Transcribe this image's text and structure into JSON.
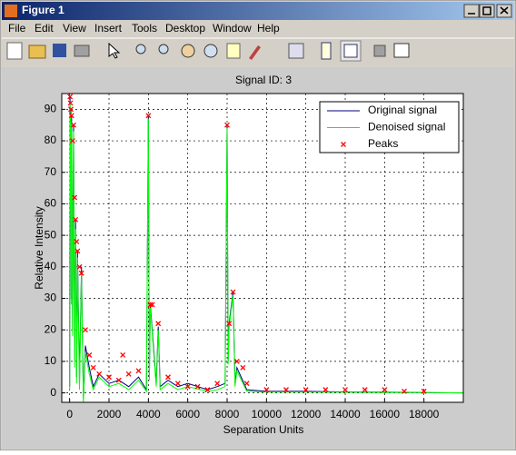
{
  "window": {
    "title": "Figure 1",
    "menu": [
      "File",
      "Edit",
      "View",
      "Insert",
      "Tools",
      "Desktop",
      "Window",
      "Help"
    ]
  },
  "chart_data": {
    "type": "line",
    "title": "Signal ID: 3",
    "x_label": "Separation Units",
    "y_label": "Relative Intensity",
    "x": [
      0,
      20,
      40,
      60,
      80,
      100,
      150,
      200,
      250,
      300,
      350,
      400,
      500,
      600,
      700,
      800,
      1000,
      1200,
      1500,
      2000,
      2500,
      3000,
      3500,
      3900,
      4000,
      4050,
      4100,
      4400,
      4500,
      4600,
      5000,
      5500,
      6000,
      7000,
      7500,
      7900,
      8000,
      8050,
      8100,
      8300,
      8400,
      8500,
      9000,
      10000,
      12000,
      14000,
      16000,
      18000,
      20000
    ],
    "series": [
      {
        "name": "Original signal",
        "color": "#000080",
        "values": [
          2,
          94,
          60,
          90,
          30,
          88,
          20,
          85,
          10,
          55,
          5,
          45,
          3,
          40,
          -2,
          15,
          8,
          2,
          6,
          3,
          4,
          2,
          5,
          1,
          88,
          5,
          28,
          3,
          21,
          2,
          4,
          2,
          3,
          1,
          2,
          3,
          85,
          10,
          22,
          32,
          3,
          8,
          1,
          0.5,
          0.5,
          0.3,
          0.2,
          0.1,
          0
        ]
      },
      {
        "name": "Denoised signal",
        "color": "#00ff00",
        "values": [
          1,
          92,
          58,
          88,
          28,
          86,
          18,
          83,
          8,
          52,
          3,
          43,
          1,
          38,
          -3,
          13,
          6,
          1,
          5,
          2,
          3,
          1,
          4,
          0.5,
          87,
          4,
          27,
          2,
          20,
          1,
          3,
          1,
          2,
          0.5,
          1,
          2,
          84,
          9,
          21,
          31,
          2,
          7,
          0.5,
          0.3,
          0.3,
          0.2,
          0.1,
          0.1,
          0
        ]
      },
      {
        "name": "Peaks",
        "type": "scatter",
        "color": "#ff0000",
        "x": [
          20,
          40,
          60,
          100,
          150,
          200,
          250,
          300,
          350,
          400,
          500,
          600,
          800,
          1000,
          1200,
          1500,
          2000,
          2500,
          2700,
          3000,
          3500,
          4000,
          4100,
          4200,
          4500,
          5000,
          5500,
          6000,
          6500,
          7000,
          7500,
          8000,
          8100,
          8300,
          8500,
          8800,
          9000,
          10000,
          11000,
          12000,
          13000,
          14000,
          15000,
          16000,
          17000,
          18000
        ],
        "values": [
          94,
          92,
          90,
          88,
          80,
          85,
          62,
          55,
          48,
          45,
          40,
          38,
          20,
          12,
          8,
          6,
          5,
          4,
          12,
          6,
          7,
          88,
          28,
          28,
          22,
          5,
          3,
          2,
          2,
          1,
          3,
          85,
          22,
          32,
          10,
          8,
          3,
          1,
          1,
          1,
          1,
          1,
          1,
          1,
          0.5,
          0.5
        ]
      }
    ],
    "xlim": [
      -400,
      20000
    ],
    "ylim": [
      -3,
      95
    ],
    "xticks": [
      0,
      2000,
      4000,
      6000,
      8000,
      10000,
      12000,
      14000,
      16000,
      18000
    ],
    "yticks": [
      0,
      10,
      20,
      30,
      40,
      50,
      60,
      70,
      80,
      90
    ],
    "grid": true,
    "legend": "top-right"
  }
}
